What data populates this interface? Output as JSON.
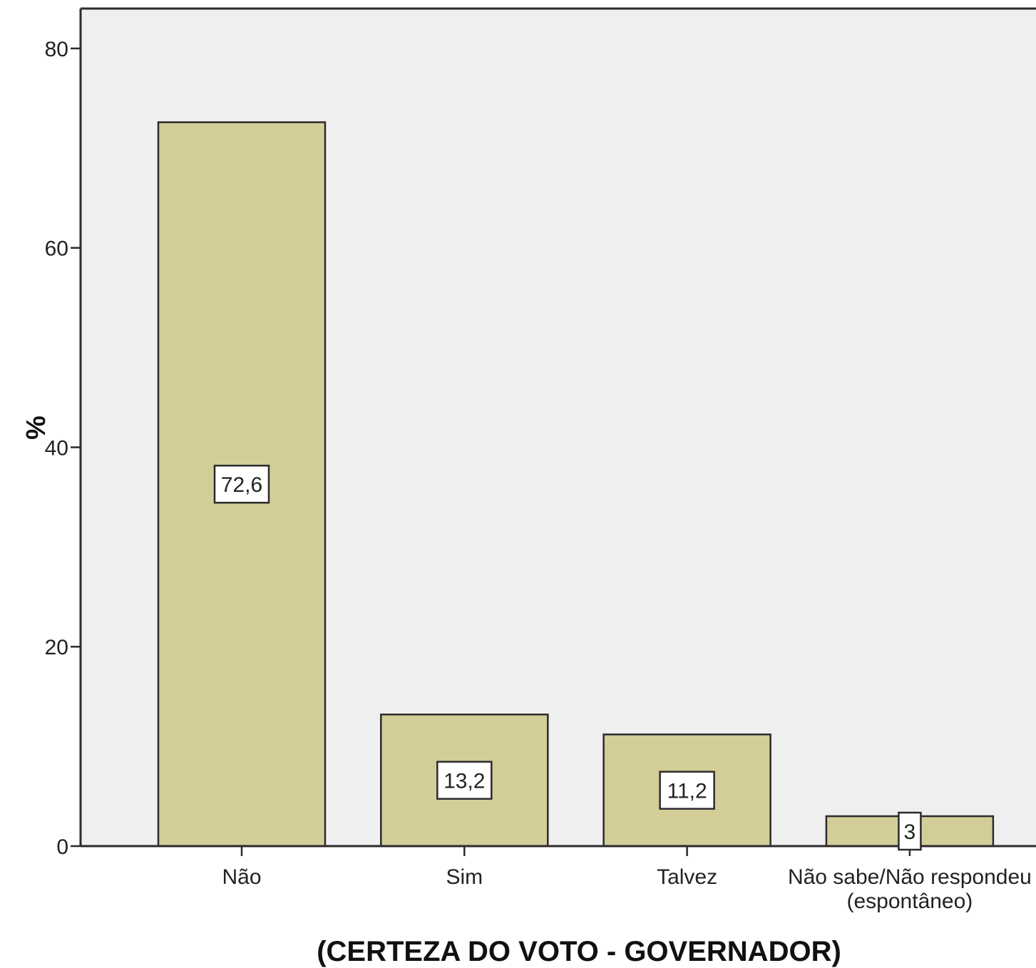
{
  "chart_data": {
    "type": "bar",
    "categories": [
      "Não",
      "Sim",
      "Talvez",
      "Não sabe/Não respondeu (espontâneo)"
    ],
    "category_lines": [
      [
        "Não"
      ],
      [
        "Sim"
      ],
      [
        "Talvez"
      ],
      [
        "Não sabe/Não respondeu",
        "(espontâneo)"
      ]
    ],
    "values": [
      72.6,
      13.2,
      11.2,
      3
    ],
    "data_labels": [
      "72,6",
      "13,2",
      "11,2",
      "3"
    ],
    "ylabel": "%",
    "xlabel": "(CERTEZA DO VOTO - GOVERNADOR)",
    "ylim": [
      0,
      84
    ],
    "yticks": [
      0,
      20,
      40,
      60,
      80
    ],
    "grid": false,
    "colors": {
      "bar_fill": "#d3cd98",
      "bar_stroke": "#2b2b2b",
      "plot_background": "#efeff0",
      "axis": "#2b2b2b",
      "label_box_fill": "#ffffff"
    }
  }
}
